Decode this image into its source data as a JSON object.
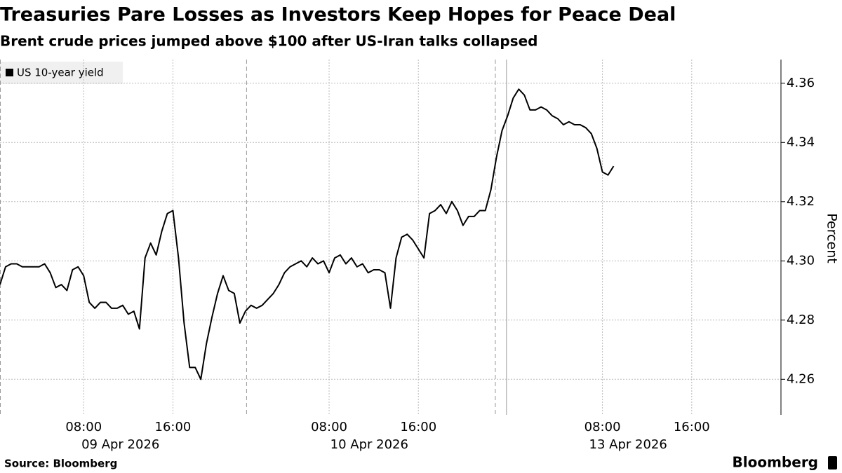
{
  "chart_data": {
    "type": "line",
    "title": "Treasuries Pare Losses as Investors Keep Hopes for Peace Deal",
    "subtitle": "Brent crude prices jumped above $100 after US-Iran talks collapsed",
    "y_axis_label": "Percent",
    "source": "Source: Bloomberg",
    "brand": "Bloomberg",
    "x": [
      0,
      0.5,
      1,
      1.5,
      2,
      2.5,
      3,
      3.5,
      4,
      4.5,
      5,
      5.5,
      6,
      6.5,
      7,
      7.5,
      8,
      8.5,
      9,
      9.5,
      10,
      10.5,
      11,
      11.5,
      12,
      12.5,
      13,
      13.5,
      14,
      14.5,
      15,
      15.5,
      16,
      16.5,
      17,
      17.5,
      18,
      18.5,
      19,
      19.5,
      20,
      20.5,
      21,
      21.5,
      22,
      22.5,
      23,
      23.5,
      24,
      24.5,
      25,
      25.5,
      26,
      26.5,
      27,
      27.5,
      28,
      28.5,
      29,
      29.5,
      30,
      30.5,
      31,
      31.5,
      32,
      32.5,
      33,
      33.5,
      34,
      34.5,
      35,
      35.5,
      36,
      36.5,
      37,
      37.5,
      38,
      38.5,
      39,
      39.5,
      40,
      40.5,
      41,
      41.5,
      42,
      42.5,
      43,
      43.5,
      44,
      44.5,
      45,
      45.5,
      46,
      46.5,
      47,
      47.5,
      48,
      48.5,
      49,
      49.5,
      50,
      50.5,
      51,
      51.5,
      52,
      52.5,
      53,
      53.5,
      54,
      54.5,
      55
    ],
    "series": [
      {
        "name": "US 10-year yield",
        "color": "#000000",
        "values": [
          4.292,
          4.298,
          4.299,
          4.299,
          4.298,
          4.298,
          4.298,
          4.298,
          4.299,
          4.296,
          4.291,
          4.292,
          4.29,
          4.297,
          4.298,
          4.295,
          4.286,
          4.284,
          4.286,
          4.286,
          4.284,
          4.284,
          4.285,
          4.282,
          4.283,
          4.277,
          4.301,
          4.306,
          4.302,
          4.31,
          4.316,
          4.317,
          4.301,
          4.279,
          4.264,
          4.264,
          4.26,
          4.272,
          4.281,
          4.289,
          4.295,
          4.29,
          4.289,
          4.279,
          4.283,
          4.285,
          4.284,
          4.285,
          4.287,
          4.289,
          4.292,
          4.296,
          4.298,
          4.299,
          4.3,
          4.298,
          4.301,
          4.299,
          4.3,
          4.296,
          4.301,
          4.302,
          4.299,
          4.301,
          4.298,
          4.299,
          4.296,
          4.297,
          4.297,
          4.296,
          4.284,
          4.301,
          4.308,
          4.309,
          4.307,
          4.304,
          4.301,
          4.316,
          4.317,
          4.319,
          4.316,
          4.32,
          4.317,
          4.312,
          4.315,
          4.315,
          4.317,
          4.317,
          4.324,
          4.335,
          4.344,
          4.349,
          4.355,
          4.358,
          4.356,
          4.351,
          4.351,
          4.352,
          4.351,
          4.349,
          4.348,
          4.346,
          4.347,
          4.346,
          4.346,
          4.345,
          4.343,
          4.338,
          4.33,
          4.329,
          4.332
        ]
      }
    ],
    "xlim": [
      0,
      70
    ],
    "xticks": [
      {
        "value": 7.5,
        "label": "08:00"
      },
      {
        "value": 15.5,
        "label": "16:00"
      },
      {
        "value": 29.5,
        "label": "08:00"
      },
      {
        "value": 37.5,
        "label": "16:00"
      },
      {
        "value": 54,
        "label": "08:00"
      },
      {
        "value": 62,
        "label": "16:00"
      }
    ],
    "xdate_labels": [
      {
        "value": 10.8,
        "label": "09 Apr 2026"
      },
      {
        "value": 33.1,
        "label": "10 Apr 2026"
      },
      {
        "value": 56.3,
        "label": "13 Apr 2026"
      }
    ],
    "dividers": [
      {
        "value": 0,
        "style": "dashed"
      },
      {
        "value": 22.1,
        "style": "dashed"
      },
      {
        "value": 44.4,
        "style": "dashed"
      },
      {
        "value": 45.4,
        "style": "solid"
      }
    ],
    "ylim": [
      4.248,
      4.368
    ],
    "yticks": [
      4.26,
      4.28,
      {
        "value": 4.3,
        "label": "4.30"
      },
      4.32,
      4.34,
      4.36
    ],
    "grid": true
  }
}
